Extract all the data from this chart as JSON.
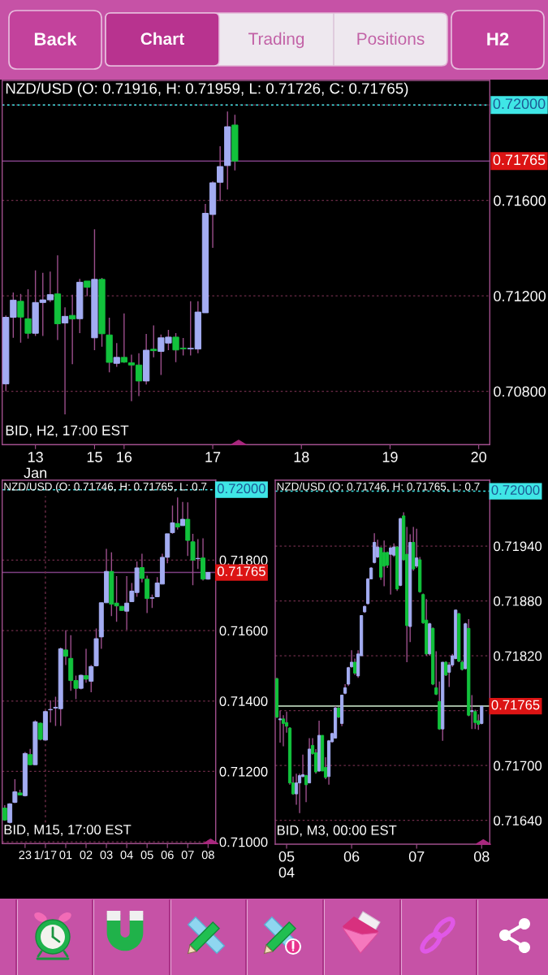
{
  "chart_data": [
    {
      "type": "other",
      "annotations": [
        "Back",
        "Chart",
        "Trading",
        "Positions",
        "H2"
      ]
    },
    {
      "type": "candlestick",
      "title": "NZD/USD (O: 0.71916, H: 0.71959, L: 0.71726, C: 0.71765)",
      "categories": [
        null,
        null,
        null,
        null,
        "13\nJan",
        null,
        null,
        null,
        null,
        null,
        null,
        null,
        "15",
        null,
        null,
        null,
        "16",
        null,
        null,
        null,
        null,
        null,
        null,
        null,
        null,
        null,
        null,
        null,
        "17",
        null,
        null,
        null,
        null,
        null,
        null,
        null,
        null,
        null,
        null,
        null,
        "18",
        null,
        null,
        null,
        null,
        null,
        null,
        null,
        null,
        null,
        null,
        null,
        "19",
        null,
        null,
        null,
        null,
        null,
        null,
        null,
        null,
        null,
        null,
        null,
        "20",
        null
      ],
      "ohlc": [
        [
          0.70831,
          0.71118,
          0.708,
          0.7111
        ],
        [
          0.7111,
          0.71214,
          0.71024,
          0.71182
        ],
        [
          0.71177,
          0.71208,
          0.71004,
          0.71111
        ],
        [
          0.71104,
          0.71228,
          0.71021,
          0.71043
        ],
        [
          0.71043,
          0.71307,
          0.71032,
          0.71172
        ],
        [
          0.71172,
          0.71297,
          0.71032,
          0.71183
        ],
        [
          0.71183,
          0.71302,
          0.71174,
          0.71205
        ],
        [
          0.71208,
          0.7137,
          0.71015,
          0.71083
        ],
        [
          0.71086,
          0.71152,
          0.70703,
          0.71114
        ],
        [
          0.71118,
          0.71205,
          0.70913,
          0.71103
        ],
        [
          0.71104,
          0.71271,
          0.71044,
          0.71257
        ],
        [
          0.71262,
          0.71262,
          0.71199,
          0.71236
        ],
        [
          0.71024,
          0.71479,
          0.70972,
          0.71269
        ],
        [
          0.71269,
          0.71275,
          0.70987,
          0.71041
        ],
        [
          0.71036,
          0.71108,
          0.70879,
          0.70921
        ],
        [
          0.70917,
          0.71002,
          0.70902,
          0.70942
        ],
        [
          0.70942,
          0.71126,
          0.70919,
          0.70922
        ],
        [
          0.70919,
          0.70953,
          0.70758,
          0.7091
        ],
        [
          0.7091,
          0.70959,
          0.7078,
          0.70843
        ],
        [
          0.70843,
          0.7104,
          0.70828,
          0.70972
        ],
        [
          0.70976,
          0.71076,
          0.70942,
          0.7097
        ],
        [
          0.70967,
          0.71038,
          0.70868,
          0.71024
        ],
        [
          0.71002,
          0.71057,
          0.70972,
          0.71027
        ],
        [
          0.71027,
          0.71044,
          0.70922,
          0.70973
        ],
        [
          0.70981,
          0.71023,
          0.7095,
          0.70978
        ],
        [
          0.70978,
          0.71177,
          0.7095,
          0.7098
        ],
        [
          0.70977,
          0.71177,
          0.70959,
          0.71132
        ],
        [
          0.71129,
          0.71585,
          0.71129,
          0.71546
        ],
        [
          0.71541,
          0.7168,
          0.71401,
          0.71674
        ],
        [
          0.71676,
          0.71827,
          0.71597,
          0.71742
        ],
        [
          0.71746,
          0.71973,
          0.71646,
          0.71909
        ],
        [
          0.71916,
          0.71959,
          0.71726,
          0.71765
        ],
        null,
        null,
        null,
        null,
        null,
        null,
        null,
        null,
        null,
        null,
        null,
        null,
        null,
        null,
        null,
        null,
        null,
        null,
        null,
        null,
        null,
        null,
        null,
        null,
        null,
        null,
        null,
        null,
        null,
        null,
        null,
        null,
        null,
        null
      ],
      "colors": [
        "#a3acf2",
        "#a3acf2",
        "#12c23c",
        "#12c23c",
        "#a3acf2",
        "#a3acf2",
        "#a3acf2",
        "#12c23c",
        "#a3acf2",
        "#12c23c",
        "#a3acf2",
        "#12c23c",
        "#a3acf2",
        "#12c23c",
        "#12c23c",
        "#a3acf2",
        "#12c23c",
        "#12c23c",
        "#12c23c",
        "#a3acf2",
        "#12c23c",
        "#a3acf2",
        "#a3acf2",
        "#12c23c",
        "#12c23c",
        "#a3acf2",
        "#a3acf2",
        "#a3acf2",
        "#a3acf2",
        "#a3acf2",
        "#a3acf2",
        "#12c23c",
        null,
        null,
        null,
        null,
        null,
        null,
        null,
        null,
        null,
        null,
        null,
        null,
        null,
        null,
        null,
        null,
        null,
        null,
        null,
        null,
        null,
        null,
        null,
        null,
        null,
        null,
        null,
        null,
        null,
        null,
        null,
        null,
        null,
        null
      ],
      "ylim": [
        0.70576,
        0.72103
      ],
      "yticks": [
        {
          "value": 0.708,
          "label": "0.70800"
        },
        {
          "value": 0.712,
          "label": "0.71200"
        },
        {
          "value": 0.716,
          "label": "0.71600"
        },
        {
          "value": 0.72,
          "label": null
        }
      ],
      "grid": "y",
      "ref_lines": [
        {
          "axis": "y",
          "value": 0.72,
          "label": "0.72000",
          "color": "#3fe6e6",
          "line_style": "dotted"
        },
        {
          "axis": "y",
          "value": 0.71765,
          "label": "0.71765",
          "color": "#7d3f82",
          "line_style": "solid"
        }
      ],
      "annotations": [
        "BID, H2, 17:00 EST"
      ]
    },
    {
      "type": "candlestick",
      "title": "NZD/USD (O: 0.71746, H: 0.71765, L: 0.7",
      "categories": [
        null,
        null,
        null,
        null,
        "23",
        null,
        null,
        null,
        "1/17",
        null,
        null,
        null,
        "01",
        null,
        null,
        null,
        "02",
        null,
        null,
        null,
        "03",
        null,
        null,
        null,
        "04",
        null,
        null,
        null,
        "05",
        null,
        null,
        null,
        "06",
        null,
        null,
        null,
        "07",
        null,
        null,
        null,
        "08",
        null
      ],
      "ohlc": [
        [
          0.71096,
          0.71104,
          0.7106,
          0.71062
        ],
        [
          0.71055,
          0.7111,
          0.71052,
          0.71108
        ],
        [
          0.71112,
          0.71178,
          0.7111,
          0.71142
        ],
        [
          0.71139,
          0.71148,
          0.71132,
          0.71133
        ],
        [
          0.71131,
          0.71255,
          0.71129,
          0.71251
        ],
        [
          0.71248,
          0.71264,
          0.71218,
          0.71219
        ],
        [
          0.71219,
          0.71345,
          0.71219,
          0.71341
        ],
        [
          0.71337,
          0.71339,
          0.71288,
          0.71291
        ],
        [
          0.71289,
          0.71373,
          0.71289,
          0.7137
        ],
        [
          0.71375,
          0.71402,
          0.71339,
          0.71376
        ],
        [
          0.7138,
          0.71412,
          0.71329,
          0.71382
        ],
        [
          0.71378,
          0.71552,
          0.71329,
          0.71548
        ],
        [
          0.71545,
          0.71601,
          0.71502,
          0.71527
        ],
        [
          0.71521,
          0.71587,
          0.71429,
          0.71458
        ],
        [
          0.71458,
          0.71472,
          0.71405,
          0.71436
        ],
        [
          0.71436,
          0.71475,
          0.71433,
          0.71473
        ],
        [
          0.71472,
          0.71548,
          0.71452,
          0.71462
        ],
        [
          0.71456,
          0.71502,
          0.71425,
          0.71498
        ],
        [
          0.715,
          0.71606,
          0.71498,
          0.71577
        ],
        [
          0.71582,
          0.71679,
          0.71548,
          0.71679
        ],
        [
          0.71679,
          0.71832,
          0.71679,
          0.71768
        ],
        [
          0.71768,
          0.71822,
          0.71641,
          0.71675
        ],
        [
          0.71678,
          0.71755,
          0.71625,
          0.7167
        ],
        [
          0.71669,
          0.71669,
          0.71656,
          0.71657
        ],
        [
          0.71655,
          0.71755,
          0.71602,
          0.71678
        ],
        [
          0.71682,
          0.71735,
          0.71682,
          0.71712
        ],
        [
          0.71708,
          0.71796,
          0.71696,
          0.71778
        ],
        [
          0.71779,
          0.71818,
          0.71737,
          0.71748
        ],
        [
          0.71746,
          0.71756,
          0.7165,
          0.71691
        ],
        [
          0.71692,
          0.71702,
          0.71664,
          0.71693
        ],
        [
          0.71696,
          0.71752,
          0.71695,
          0.71735
        ],
        [
          0.71732,
          0.71818,
          0.71732,
          0.71808
        ],
        [
          0.71808,
          0.71875,
          0.71791,
          0.71875
        ],
        [
          0.71878,
          0.71955,
          0.71875,
          0.71906
        ],
        [
          0.71904,
          0.71978,
          0.71887,
          0.71894
        ],
        [
          0.71898,
          0.71965,
          0.71898,
          0.71916
        ],
        [
          0.71916,
          0.71964,
          0.71812,
          0.71856
        ],
        [
          0.71852,
          0.71875,
          0.71729,
          0.718
        ],
        [
          0.71804,
          0.7186,
          0.71775,
          0.71805
        ],
        [
          0.71806,
          0.71862,
          0.71742,
          0.71746
        ],
        [
          0.71746,
          0.71765,
          0.71745,
          0.71765
        ],
        null
      ],
      "colors": [
        "#12c23c",
        "#a3acf2",
        "#a3acf2",
        "#12c23c",
        "#a3acf2",
        "#12c23c",
        "#a3acf2",
        "#12c23c",
        "#a3acf2",
        "#a3acf2",
        "#a3acf2",
        "#a3acf2",
        "#12c23c",
        "#12c23c",
        "#12c23c",
        "#a3acf2",
        "#12c23c",
        "#a3acf2",
        "#a3acf2",
        "#a3acf2",
        "#a3acf2",
        "#12c23c",
        "#12c23c",
        "#12c23c",
        "#a3acf2",
        "#a3acf2",
        "#a3acf2",
        "#12c23c",
        "#12c23c",
        "#a3acf2",
        "#a3acf2",
        "#a3acf2",
        "#a3acf2",
        "#a3acf2",
        "#12c23c",
        "#a3acf2",
        "#12c23c",
        "#12c23c",
        "#a3acf2",
        "#12c23c",
        "#a3acf2",
        null
      ],
      "ylim": [
        0.70995,
        0.72027
      ],
      "yticks": [
        {
          "value": 0.71,
          "label": "0.71000"
        },
        {
          "value": 0.712,
          "label": "0.71200"
        },
        {
          "value": 0.714,
          "label": "0.71400"
        },
        {
          "value": 0.716,
          "label": "0.71600"
        },
        {
          "value": 0.718,
          "label": "0.71800"
        }
      ],
      "grid": "y",
      "ref_lines": [
        {
          "axis": "y",
          "value": 0.72,
          "label": "0.72000",
          "color": "#3fe6e6",
          "line_style": "dotted"
        },
        {
          "axis": "y",
          "value": 0.71765,
          "label": "0.71765",
          "color": "#7d3f82",
          "line_style": "solid"
        },
        {
          "axis": "x",
          "value": "1/17",
          "color": "#6e2c49",
          "line_style": "dotted"
        }
      ],
      "annotations": [
        "BID, M15, 17:00 EST"
      ]
    },
    {
      "type": "candlestick",
      "title": "NZD/USD (O: 0.71746, H: 0.71765, L: 0.7",
      "categories": [
        null,
        null,
        null,
        "05\n04",
        null,
        null,
        null,
        null,
        null,
        null,
        null,
        null,
        null,
        null,
        null,
        null,
        null,
        null,
        null,
        null,
        null,
        null,
        null,
        "06",
        null,
        null,
        null,
        null,
        null,
        null,
        null,
        null,
        null,
        null,
        null,
        null,
        null,
        null,
        null,
        null,
        null,
        null,
        null,
        "07",
        null,
        null,
        null,
        null,
        null,
        null,
        null,
        null,
        null,
        null,
        null,
        null,
        null,
        null,
        null,
        null,
        null,
        null,
        null,
        "08",
        null,
        null
      ],
      "ohlc": [
        [
          0.71795,
          0.71796,
          0.71752,
          0.71753
        ],
        [
          0.7175,
          0.7176,
          0.71725,
          0.71751
        ],
        [
          0.71751,
          0.71755,
          0.71721,
          0.71746
        ],
        [
          0.71747,
          0.71759,
          0.71736,
          0.71743
        ],
        [
          0.71741,
          0.71742,
          0.71679,
          0.71681
        ],
        [
          0.71681,
          0.71688,
          0.71668,
          0.71669
        ],
        [
          0.71669,
          0.71691,
          0.71657,
          0.71681
        ],
        [
          0.71681,
          0.71691,
          0.71648,
          0.71689
        ],
        [
          0.71688,
          0.71712,
          0.71687,
          0.7169
        ],
        [
          0.71689,
          0.7169,
          0.7166,
          0.71679
        ],
        [
          0.71681,
          0.7173,
          0.71681,
          0.71718
        ],
        [
          0.71722,
          0.7173,
          0.71712,
          0.71713
        ],
        [
          0.71714,
          0.71718,
          0.71691,
          0.71693
        ],
        [
          0.71694,
          0.71749,
          0.71693,
          0.71733
        ],
        [
          0.71733,
          0.71733,
          0.71694,
          0.71694
        ],
        [
          0.71698,
          0.71709,
          0.71685,
          0.71687
        ],
        [
          0.71688,
          0.71728,
          0.71679,
          0.71727
        ],
        [
          0.71726,
          0.71736,
          0.71725,
          0.71735
        ],
        [
          0.7173,
          0.71765,
          0.7173,
          0.71763
        ],
        [
          0.71763,
          0.71764,
          0.71752,
          0.71753
        ],
        [
          0.71746,
          0.71777,
          0.71743,
          0.71777
        ],
        [
          0.71779,
          0.71789,
          0.71778,
          0.71785
        ],
        [
          0.71789,
          0.71808,
          0.71787,
          0.71807
        ],
        [
          0.71808,
          0.71826,
          0.71807,
          0.71813
        ],
        [
          0.71813,
          0.71817,
          0.71799,
          0.71801
        ],
        [
          0.71798,
          0.71826,
          0.71796,
          0.71822
        ],
        [
          0.7182,
          0.71864,
          0.7182,
          0.71864
        ],
        [
          0.71868,
          0.71875,
          0.71867,
          0.71874
        ],
        [
          0.71877,
          0.71905,
          0.71876,
          0.71904
        ],
        [
          0.71904,
          0.71917,
          0.71904,
          0.71916
        ],
        [
          0.71922,
          0.71954,
          0.71921,
          0.71944
        ],
        [
          0.71928,
          0.71947,
          0.71927,
          0.71939
        ],
        [
          0.71938,
          0.71939,
          0.71903,
          0.71906
        ],
        [
          0.71933,
          0.71946,
          0.71896,
          0.71918
        ],
        [
          0.71933,
          0.71934,
          0.71916,
          0.71919
        ],
        [
          0.71931,
          0.71939,
          0.71887,
          0.71938
        ],
        [
          0.7193,
          0.71943,
          0.71928,
          0.71939
        ],
        [
          0.71939,
          0.7194,
          0.71891,
          0.71893
        ],
        [
          0.71897,
          0.71971,
          0.71896,
          0.7197
        ],
        [
          0.71973,
          0.71977,
          0.71924,
          0.71925
        ],
        [
          0.71931,
          0.71961,
          0.71813,
          0.71853
        ],
        [
          0.71852,
          0.71953,
          0.71835,
          0.71944
        ],
        [
          0.71944,
          0.71961,
          0.71913,
          0.71915
        ],
        [
          0.71918,
          0.71959,
          0.71916,
          0.71927
        ],
        [
          0.71925,
          0.71928,
          0.71889,
          0.7189
        ],
        [
          0.71887,
          0.71888,
          0.71855,
          0.71856
        ],
        [
          0.71859,
          0.71882,
          0.7182,
          0.71822
        ],
        [
          0.71822,
          0.71856,
          0.7182,
          0.71855
        ],
        [
          0.7185,
          0.71851,
          0.71788,
          0.71789
        ],
        [
          0.71785,
          0.71825,
          0.71777,
          0.71778
        ],
        [
          0.7177,
          0.71792,
          0.71739,
          0.7174
        ],
        [
          0.7174,
          0.71813,
          0.71727,
          0.71813
        ],
        [
          0.71813,
          0.71814,
          0.71798,
          0.71799
        ],
        [
          0.71802,
          0.71813,
          0.71786,
          0.7181
        ],
        [
          0.7181,
          0.71822,
          0.71808,
          0.7182
        ],
        [
          0.71817,
          0.7187,
          0.71816,
          0.7187
        ],
        [
          0.71866,
          0.71867,
          0.71813,
          0.71814
        ],
        [
          0.71813,
          0.71815,
          0.71804,
          0.71805
        ],
        [
          0.71806,
          0.71856,
          0.71805,
          0.71855
        ],
        [
          0.7185,
          0.7186,
          0.71754,
          0.71755
        ],
        [
          0.71759,
          0.71777,
          0.7174,
          0.7176
        ],
        [
          0.71759,
          0.71761,
          0.7174,
          0.71747
        ],
        [
          0.71749,
          0.71756,
          0.71739,
          0.71745
        ],
        [
          0.71746,
          0.71765,
          0.71745,
          0.71765
        ],
        null,
        null
      ],
      "colors": [
        "#12c23c",
        "#a3acf2",
        "#12c23c",
        "#12c23c",
        "#12c23c",
        "#12c23c",
        "#a3acf2",
        "#a3acf2",
        "#a3acf2",
        "#12c23c",
        "#a3acf2",
        "#12c23c",
        "#12c23c",
        "#a3acf2",
        "#12c23c",
        "#12c23c",
        "#a3acf2",
        "#a3acf2",
        "#a3acf2",
        "#12c23c",
        "#a3acf2",
        "#a3acf2",
        "#a3acf2",
        "#a3acf2",
        "#12c23c",
        "#a3acf2",
        "#a3acf2",
        "#a3acf2",
        "#a3acf2",
        "#a3acf2",
        "#a3acf2",
        "#a3acf2",
        "#12c23c",
        "#12c23c",
        "#12c23c",
        "#a3acf2",
        "#a3acf2",
        "#12c23c",
        "#a3acf2",
        "#12c23c",
        "#12c23c",
        "#a3acf2",
        "#12c23c",
        "#a3acf2",
        "#12c23c",
        "#12c23c",
        "#12c23c",
        "#a3acf2",
        "#12c23c",
        "#12c23c",
        "#12c23c",
        "#a3acf2",
        "#12c23c",
        "#a3acf2",
        "#a3acf2",
        "#a3acf2",
        "#12c23c",
        "#12c23c",
        "#a3acf2",
        "#12c23c",
        "#a3acf2",
        "#12c23c",
        "#12c23c",
        "#a3acf2",
        null,
        null
      ],
      "ylim": [
        0.71614,
        0.72012
      ],
      "yticks": [
        {
          "value": 0.7164,
          "label": "0.71640"
        },
        {
          "value": 0.717,
          "label": "0.71700"
        },
        {
          "value": 0.7176,
          "label": null
        },
        {
          "value": 0.7182,
          "label": "0.71820"
        },
        {
          "value": 0.7188,
          "label": "0.71880"
        },
        {
          "value": 0.7194,
          "label": "0.71940"
        }
      ],
      "grid": "y",
      "ref_lines": [
        {
          "axis": "y",
          "value": 0.72,
          "label": "0.72000",
          "color": "#3fe6e6",
          "line_style": "dotted"
        },
        {
          "axis": "y",
          "value": 0.71765,
          "label": "0.71765",
          "color": "#d4f2d4",
          "line_style": "solid"
        }
      ],
      "annotations": [
        "BID, M3, 00:00 EST"
      ]
    }
  ]
}
